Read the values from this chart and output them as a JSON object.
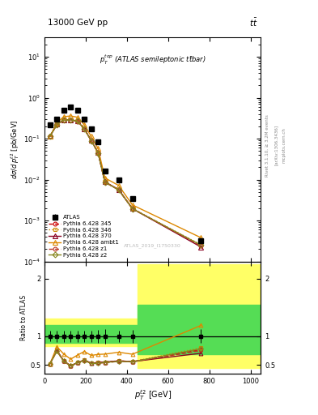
{
  "title_left": "13000 GeV pp",
  "title_right": "tt",
  "annotation": "$p_T^{top}$ (ATLAS semileptonic ttbar)",
  "watermark": "ATLAS_2019_I1750330",
  "ylabel_main": "dσ / d p_T^{t2} [pb/GeV]",
  "ylabel_ratio": "Ratio to ATLAS",
  "xlabel": "p_T^{t2} [GeV]",
  "xlim": [
    0,
    1050
  ],
  "ylim_main": [
    0.0001,
    30
  ],
  "ylim_ratio": [
    0.35,
    2.3
  ],
  "atlas_x": [
    27,
    60,
    93,
    127,
    160,
    193,
    227,
    260,
    293,
    360,
    427,
    760
  ],
  "atlas_y": [
    0.22,
    0.3,
    0.5,
    0.6,
    0.5,
    0.3,
    0.17,
    0.085,
    0.016,
    0.01,
    0.0035,
    0.00032
  ],
  "atlas_yerr": [
    0.02,
    0.03,
    0.05,
    0.06,
    0.05,
    0.03,
    0.017,
    0.009,
    0.002,
    0.001,
    0.0004,
    4e-05
  ],
  "py345_x": [
    27,
    60,
    93,
    127,
    160,
    193,
    227,
    260,
    293,
    360,
    427,
    760
  ],
  "py345_y": [
    0.115,
    0.225,
    0.285,
    0.29,
    0.27,
    0.175,
    0.09,
    0.046,
    0.0088,
    0.0057,
    0.00195,
    0.000245
  ],
  "py345_color": "#cc0000",
  "py345_label": "Pythia 6.428 345",
  "py346_x": [
    27,
    60,
    93,
    127,
    160,
    193,
    227,
    260,
    293,
    360,
    427,
    760
  ],
  "py346_y": [
    0.115,
    0.225,
    0.285,
    0.29,
    0.27,
    0.175,
    0.09,
    0.046,
    0.0088,
    0.0057,
    0.00195,
    0.000255
  ],
  "py346_color": "#cc8800",
  "py346_label": "Pythia 6.428 346",
  "py370_x": [
    27,
    60,
    93,
    127,
    160,
    193,
    227,
    260,
    293,
    360,
    427,
    760
  ],
  "py370_y": [
    0.115,
    0.225,
    0.285,
    0.29,
    0.27,
    0.175,
    0.09,
    0.046,
    0.0088,
    0.0057,
    0.00195,
    0.000225
  ],
  "py370_color": "#880022",
  "py370_label": "Pythia 6.428 370",
  "pyambt1_x": [
    27,
    60,
    93,
    127,
    160,
    193,
    227,
    260,
    293,
    360,
    427,
    760
  ],
  "pyambt1_y": [
    0.115,
    0.245,
    0.345,
    0.36,
    0.335,
    0.22,
    0.113,
    0.058,
    0.011,
    0.0072,
    0.0024,
    0.00038
  ],
  "pyambt1_color": "#dd8800",
  "pyambt1_label": "Pythia 6.428 ambt1",
  "pyz1_x": [
    27,
    60,
    93,
    127,
    160,
    193,
    227,
    260,
    293,
    360,
    427,
    760
  ],
  "pyz1_y": [
    0.115,
    0.222,
    0.282,
    0.287,
    0.268,
    0.172,
    0.089,
    0.045,
    0.0086,
    0.0056,
    0.00193,
    0.00024
  ],
  "pyz1_color": "#bb3322",
  "pyz1_label": "Pythia 6.428 z1",
  "pyz2_x": [
    27,
    60,
    93,
    127,
    160,
    193,
    227,
    260,
    293,
    360,
    427,
    760
  ],
  "pyz2_y": [
    0.115,
    0.222,
    0.283,
    0.289,
    0.269,
    0.173,
    0.089,
    0.045,
    0.0087,
    0.0056,
    0.00194,
    0.00025
  ],
  "pyz2_color": "#888820",
  "pyz2_label": "Pythia 6.428 z2",
  "band_split_x": 450,
  "band1_yellow_ylo": 0.83,
  "band1_yellow_yhi": 1.3,
  "band2_yellow_ylo": 0.45,
  "band2_yellow_yhi": 2.25,
  "band1_green_ylo": 0.88,
  "band1_green_yhi": 1.2,
  "band2_green_ylo": 0.68,
  "band2_green_yhi": 1.55,
  "ratio_atlas_yerr": [
    0.09,
    0.1,
    0.1,
    0.1,
    0.1,
    0.1,
    0.1,
    0.11,
    0.13,
    0.1,
    0.11,
    0.12
  ]
}
